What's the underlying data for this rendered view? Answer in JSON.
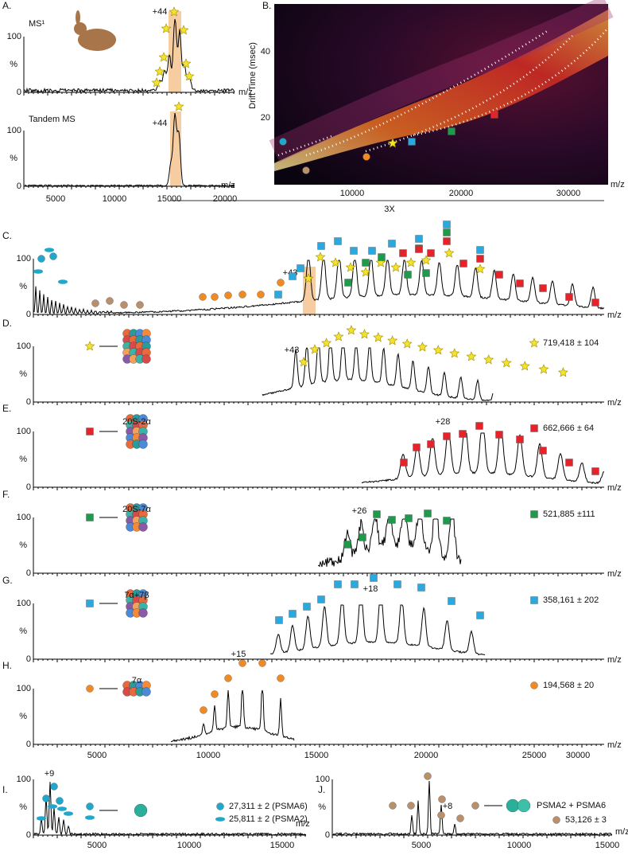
{
  "panel_a": {
    "label": "A.",
    "ms1_title": "MS¹",
    "tandem_title": "Tandem MS",
    "charge_ms1": "+44",
    "charge_tandem": "+44",
    "y_ticks": [
      "100",
      "%",
      "0"
    ],
    "x_ticks": [
      "5000",
      "10000",
      "15000",
      "20000"
    ],
    "x_unit": "m/z"
  },
  "panel_b": {
    "label": "B.",
    "y_title": "Drift Time (msec)",
    "y_ticks": [
      "40",
      "20"
    ],
    "x_ticks": [
      "10000",
      "20000",
      "30000"
    ],
    "x_unit": "m/z"
  },
  "zoom_note": "3X",
  "shared": {
    "y_ticks": [
      "100",
      "%",
      "0"
    ],
    "x_unit": "m/z",
    "x_ticks": [
      "5000",
      "10000",
      "15000",
      "20000",
      "25000",
      "30000"
    ]
  },
  "spectra": [
    {
      "label": "C.",
      "charge": "+43"
    },
    {
      "label": "D.",
      "charge": "+43",
      "mass": "719,418 ± 104"
    },
    {
      "label": "E.",
      "name": "20S-2α",
      "charge": "+28",
      "mass": "662,666 ± 64"
    },
    {
      "label": "F.",
      "name": "20S-7α",
      "charge": "+26",
      "mass": "521,885 ±111"
    },
    {
      "label": "G.",
      "name": "7α+7β",
      "charge": "+18",
      "mass": "358,161 ± 202"
    },
    {
      "label": "H.",
      "name": "7α",
      "charge": "+15",
      "mass": "194,568 ± 20"
    }
  ],
  "panel_i": {
    "label": "I.",
    "charge": "+9",
    "mass_psma6": "27,311 ± 2 (PSMA6)",
    "mass_psma2": "25,811 ± 2 (PSMA2)",
    "y_ticks": [
      "100",
      "%",
      "0"
    ],
    "x_ticks": [
      "5000",
      "10000",
      "15000"
    ],
    "x_unit": "m/z"
  },
  "panel_j": {
    "label": "J.",
    "charge": "+8",
    "complex_name": "PSMA2 + PSMA6",
    "mass": "53,126 ± 3",
    "y_ticks": [
      "100",
      "%",
      "0"
    ],
    "x_ticks": [
      "5000",
      "10000",
      "15000"
    ],
    "x_unit": "m/z"
  }
}
